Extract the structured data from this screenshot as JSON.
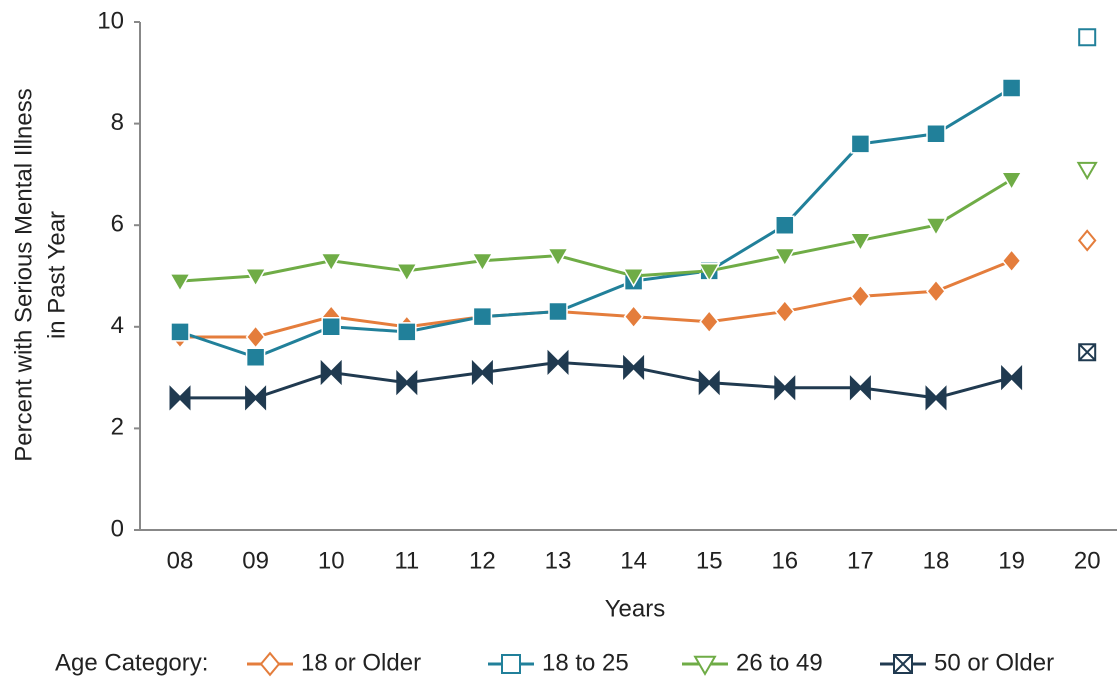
{
  "chart_data": {
    "type": "line",
    "ylabel": [
      "Percent with Serious Mental Illness",
      "in Past Year"
    ],
    "xlabel": "Years",
    "legend_title": "Age Category:",
    "categories": [
      "08",
      "09",
      "10",
      "11",
      "12",
      "13",
      "14",
      "15",
      "16",
      "17",
      "18",
      "19",
      "20"
    ],
    "series": [
      {
        "name": "18 or Older",
        "color": "#e47d3c",
        "marker": "diamond",
        "values": [
          3.8,
          3.8,
          4.2,
          4.0,
          4.2,
          4.3,
          4.2,
          4.1,
          4.3,
          4.6,
          4.7,
          5.3,
          5.7
        ]
      },
      {
        "name": "18 to 25",
        "color": "#21809a",
        "marker": "square",
        "values": [
          3.9,
          3.4,
          4.0,
          3.9,
          4.2,
          4.3,
          4.9,
          5.1,
          6.0,
          7.6,
          7.8,
          8.7,
          9.7
        ]
      },
      {
        "name": "26 to 49",
        "color": "#6fac46",
        "marker": "triangle-down",
        "values": [
          4.9,
          5.0,
          5.3,
          5.1,
          5.3,
          5.4,
          5.0,
          5.1,
          5.4,
          5.7,
          6.0,
          6.9,
          7.1
        ]
      },
      {
        "name": "50 or Older",
        "color": "#203a50",
        "marker": "bowtie",
        "values": [
          2.6,
          2.6,
          3.1,
          2.9,
          3.1,
          3.3,
          3.2,
          2.9,
          2.8,
          2.8,
          2.6,
          3.0,
          3.5
        ]
      }
    ],
    "last_point_hollow": true,
    "ylim": [
      0,
      10
    ],
    "yticks": [
      0,
      2,
      4,
      6,
      8,
      10
    ],
    "grid": false
  }
}
